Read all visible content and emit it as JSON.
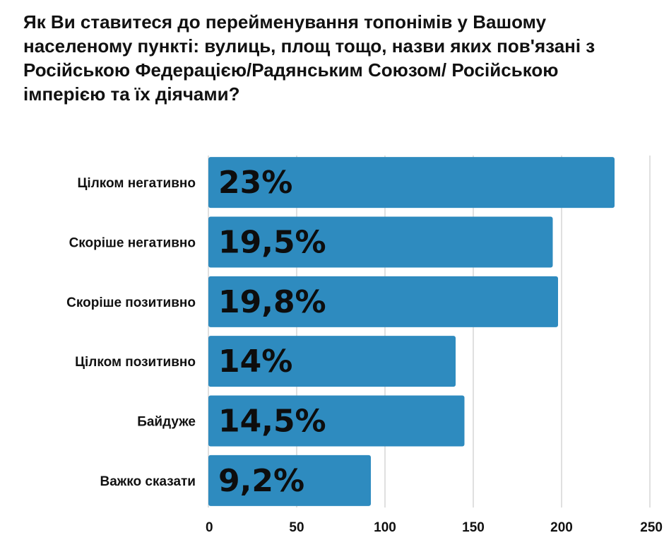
{
  "chart_data": {
    "type": "bar",
    "orientation": "horizontal",
    "title": "Як Ви ставитеся до перейменування топонімів у Вашому населеному пункті: вулиць, площ тощо, назви яких пов'язані з Російською Федерацією/Радянським Союзом/ Російською імперією та їх діячами?",
    "categories": [
      "Цілком негативно",
      "Скоріше негативно",
      "Скоріше позитивно",
      "Цілком позитивно",
      "Байдуже",
      "Важко сказати"
    ],
    "values": [
      230,
      195,
      198,
      140,
      145,
      92
    ],
    "data_labels": [
      "23%",
      "19,5%",
      "19,8%",
      "14%",
      "14,5%",
      "9,2%"
    ],
    "xlim": [
      0,
      250
    ],
    "x_ticks": [
      0,
      50,
      100,
      150,
      200,
      250
    ],
    "grid": true,
    "bar_color": "#2E8BBF",
    "grid_color": "#d6d6d6"
  }
}
